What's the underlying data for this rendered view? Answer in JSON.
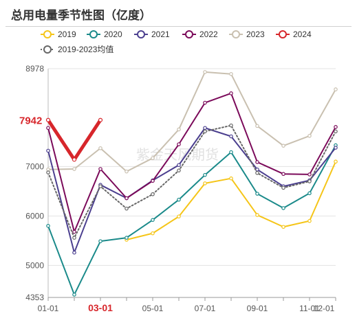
{
  "title": "总用电量季节性图（亿度）",
  "watermark": "紫金天风期货",
  "legend": [
    {
      "name": "2019",
      "color": "#f5c518",
      "style": "solid"
    },
    {
      "name": "2020",
      "color": "#1a8a8a",
      "style": "solid"
    },
    {
      "name": "2021",
      "color": "#4b3f8f",
      "style": "solid"
    },
    {
      "name": "2022",
      "color": "#7b0a5a",
      "style": "solid"
    },
    {
      "name": "2023",
      "color": "#c9c0b0",
      "style": "solid"
    },
    {
      "name": "2024",
      "color": "#d7262b",
      "style": "solid"
    },
    {
      "name": "2019-2023均值",
      "color": "#666666",
      "style": "dotted"
    }
  ],
  "chart_data": {
    "type": "line",
    "title": "总用电量季节性图（亿度）",
    "x": [
      "01-01",
      "02-01",
      "03-01",
      "04-01",
      "05-01",
      "06-01",
      "07-01",
      "08-01",
      "09-01",
      "10-01",
      "11-01",
      "12-01"
    ],
    "x_tick_labels": [
      "01-01",
      "03-01",
      "05-01",
      "07-01",
      "09-01",
      "11-01",
      "12-01"
    ],
    "highlight_tick": "03-01",
    "ylim": [
      4353,
      8978
    ],
    "y_ticks": [
      4353,
      5000,
      6000,
      7000,
      8978
    ],
    "last_value_label": "7942",
    "grid": true,
    "legend_position": "top",
    "series": [
      {
        "name": "2019",
        "values": [
          null,
          null,
          null,
          5520,
          5650,
          5990,
          6660,
          6760,
          6020,
          5780,
          5900,
          7100
        ]
      },
      {
        "name": "2020",
        "values": [
          5800,
          4410,
          5490,
          5560,
          5920,
          6330,
          6830,
          7290,
          6450,
          6160,
          6460,
          7430
        ]
      },
      {
        "name": "2021",
        "values": [
          7320,
          5260,
          6630,
          6360,
          6720,
          7030,
          7780,
          7610,
          6940,
          6600,
          6720,
          7380
        ]
      },
      {
        "name": "2022",
        "values": [
          7780,
          5680,
          6950,
          6360,
          6710,
          7450,
          8290,
          8480,
          7090,
          6850,
          6840,
          7800
        ]
      },
      {
        "name": "2023",
        "values": [
          6940,
          6950,
          7370,
          6900,
          7170,
          7750,
          8910,
          8870,
          7820,
          7420,
          7620,
          8560
        ]
      },
      {
        "name": "2024",
        "values": [
          7940,
          7140,
          7940,
          null,
          null,
          null,
          null,
          null,
          null,
          null,
          null,
          null
        ]
      },
      {
        "name": "2019-2023均值",
        "values": [
          6880,
          5560,
          6600,
          6150,
          6440,
          6920,
          7710,
          7830,
          6870,
          6570,
          6700,
          7710
        ]
      }
    ]
  }
}
